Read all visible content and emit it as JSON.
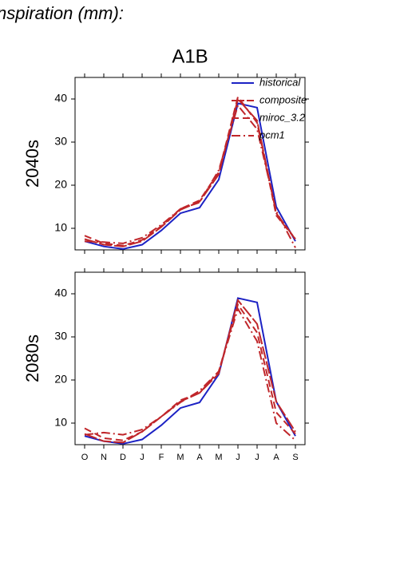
{
  "header": {
    "title": "nspiration (mm):",
    "scenario": "A1B"
  },
  "chart_data": [
    {
      "type": "line",
      "ylabel": "2040s",
      "categories": [
        null,
        null,
        null,
        null,
        null,
        null,
        null,
        null,
        null,
        null,
        null,
        null
      ],
      "ylim": [
        5,
        45
      ],
      "yticks": [
        10,
        20,
        30,
        40
      ],
      "legend": "top-right",
      "series": [
        {
          "name": "historical",
          "color": "#1c22c4",
          "dash": "solid",
          "values": [
            7,
            5.8,
            5.2,
            6.2,
            9.5,
            13.5,
            14.8,
            21.3,
            39,
            38,
            15,
            7
          ]
        },
        {
          "name": "composite",
          "color": "#c0262a",
          "dash": "longdash",
          "values": [
            7.5,
            6.2,
            5.8,
            7,
            10.3,
            14.3,
            16.2,
            22.5,
            40,
            35,
            13.5,
            7.5
          ]
        },
        {
          "name": "miroc_3.2",
          "color": "#c0262a",
          "dash": "dash",
          "values": [
            8.3,
            6.5,
            6,
            7.3,
            10.5,
            14.5,
            16.5,
            23,
            40.5,
            34.5,
            13,
            7.5
          ]
        },
        {
          "name": "pcm1",
          "color": "#c0262a",
          "dash": "dashdot",
          "values": [
            7,
            6.8,
            6.5,
            7.8,
            10.8,
            14.5,
            16,
            23.5,
            38.5,
            33,
            14,
            5.5
          ]
        }
      ]
    },
    {
      "type": "line",
      "ylabel": "2080s",
      "categories": [
        "O",
        "N",
        "D",
        "J",
        "F",
        "M",
        "A",
        "M",
        "J",
        "J",
        "A",
        "S"
      ],
      "ylim": [
        5,
        45
      ],
      "yticks": [
        10,
        20,
        30,
        40
      ],
      "series": [
        {
          "color": "#1c22c4",
          "dash": "solid",
          "values": [
            7,
            5.8,
            5.2,
            6.2,
            9.5,
            13.5,
            14.8,
            21.3,
            39,
            38,
            15,
            7
          ]
        },
        {
          "color": "#c0262a",
          "dash": "longdash",
          "values": [
            7.5,
            5.8,
            5.5,
            8,
            11.5,
            15,
            17,
            21.5,
            38.5,
            33,
            15,
            8
          ]
        },
        {
          "color": "#c0262a",
          "dash": "dash",
          "values": [
            8.8,
            6.5,
            6,
            8,
            11.5,
            15.3,
            17,
            22,
            37.5,
            31,
            12.5,
            7.5
          ]
        },
        {
          "color": "#c0262a",
          "dash": "dashdot",
          "values": [
            7.3,
            7.8,
            7.3,
            8.5,
            11.5,
            14.8,
            17.5,
            22,
            36.5,
            29,
            10,
            6
          ]
        }
      ]
    }
  ]
}
